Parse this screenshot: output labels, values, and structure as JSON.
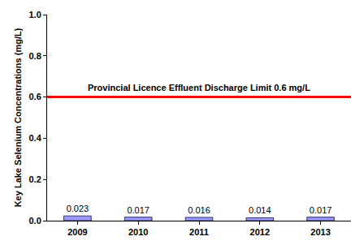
{
  "chart_data": {
    "type": "bar",
    "y_label": "Key Lake Selenium Concentrations (mg/L)",
    "categories": [
      "2009",
      "2010",
      "2011",
      "2012",
      "2013"
    ],
    "values": [
      0.023,
      0.017,
      0.016,
      0.014,
      0.017
    ],
    "color": "#9999ff",
    "data_labels": true,
    "ylim": [
      0,
      1
    ],
    "yticks": [
      {
        "value": 0,
        "label": "0.0"
      },
      0.2,
      0.4,
      0.6,
      0.8,
      {
        "value": 1,
        "label": "1.0"
      }
    ],
    "grid": false,
    "reference_line": {
      "value": 0.6,
      "label": "Provincial Licence Effluent Discharge Limit 0.6 mg/L",
      "color": "#ff0000"
    }
  }
}
